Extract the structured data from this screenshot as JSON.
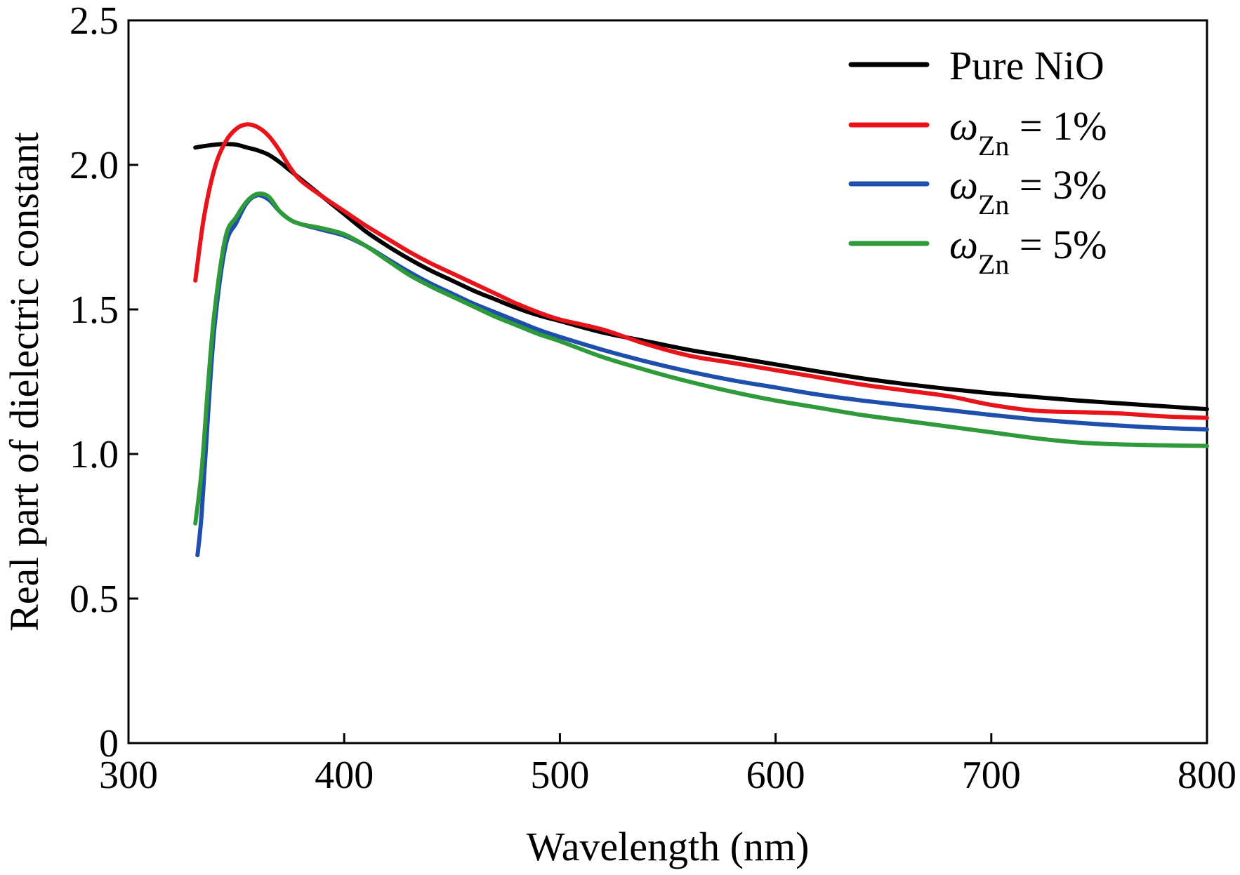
{
  "chart_data": {
    "type": "line",
    "title": "",
    "xlabel": "Wavelength (nm)",
    "ylabel": "Real part of dielectric constant",
    "xlim": [
      300,
      800
    ],
    "ylim": [
      0,
      2.5
    ],
    "xticks": [
      "300",
      "400",
      "500",
      "600",
      "700",
      "800"
    ],
    "yticks": [
      "0",
      "0.5",
      "1.0",
      "1.5",
      "2.0",
      "2.5"
    ],
    "grid": false,
    "legend_position": "top-right",
    "series": [
      {
        "name": "Pure NiO",
        "legend": {
          "symbol": "",
          "sub": "",
          "rest": "Pure NiO"
        },
        "color": "#000000",
        "x": [
          331,
          335,
          340,
          345,
          350,
          355,
          360,
          365,
          370,
          375,
          380,
          390,
          400,
          410,
          420,
          430,
          440,
          450,
          460,
          470,
          480,
          490,
          500,
          520,
          540,
          560,
          580,
          600,
          620,
          640,
          660,
          680,
          700,
          720,
          740,
          760,
          780,
          800
        ],
        "y": [
          2.06,
          2.065,
          2.07,
          2.072,
          2.07,
          2.06,
          2.05,
          2.035,
          2.01,
          1.98,
          1.95,
          1.89,
          1.83,
          1.77,
          1.72,
          1.675,
          1.635,
          1.6,
          1.565,
          1.535,
          1.505,
          1.48,
          1.46,
          1.42,
          1.39,
          1.36,
          1.335,
          1.31,
          1.285,
          1.262,
          1.242,
          1.225,
          1.21,
          1.197,
          1.185,
          1.175,
          1.165,
          1.155
        ]
      },
      {
        "name": "ωZn = 1%",
        "legend": {
          "symbol": "ω",
          "sub": "Zn",
          "rest": " = 1%"
        },
        "color": "#e8141b",
        "x": [
          331,
          335,
          340,
          345,
          350,
          355,
          360,
          365,
          370,
          375,
          380,
          390,
          400,
          410,
          420,
          430,
          440,
          450,
          460,
          470,
          480,
          490,
          500,
          520,
          540,
          560,
          580,
          600,
          620,
          640,
          660,
          680,
          700,
          720,
          740,
          760,
          780,
          800
        ],
        "y": [
          1.6,
          1.82,
          1.99,
          2.08,
          2.125,
          2.14,
          2.13,
          2.1,
          2.05,
          1.99,
          1.945,
          1.89,
          1.84,
          1.79,
          1.745,
          1.7,
          1.66,
          1.625,
          1.59,
          1.555,
          1.52,
          1.49,
          1.465,
          1.43,
          1.38,
          1.34,
          1.315,
          1.29,
          1.265,
          1.24,
          1.22,
          1.2,
          1.17,
          1.15,
          1.145,
          1.14,
          1.13,
          1.125
        ]
      },
      {
        "name": "ωZn = 3%",
        "legend": {
          "symbol": "ω",
          "sub": "Zn",
          "rest": " = 3%"
        },
        "color": "#1f4fad",
        "x": [
          332,
          334,
          337,
          340,
          345,
          350,
          355,
          360,
          365,
          370,
          375,
          380,
          390,
          400,
          410,
          420,
          430,
          440,
          450,
          460,
          470,
          480,
          490,
          500,
          520,
          540,
          560,
          580,
          600,
          620,
          640,
          660,
          680,
          700,
          720,
          740,
          760,
          780,
          800
        ],
        "y": [
          0.65,
          0.8,
          1.15,
          1.45,
          1.72,
          1.8,
          1.87,
          1.895,
          1.88,
          1.84,
          1.81,
          1.795,
          1.775,
          1.755,
          1.72,
          1.675,
          1.63,
          1.59,
          1.555,
          1.52,
          1.49,
          1.46,
          1.43,
          1.405,
          1.36,
          1.32,
          1.285,
          1.255,
          1.23,
          1.205,
          1.185,
          1.168,
          1.152,
          1.135,
          1.12,
          1.108,
          1.098,
          1.09,
          1.085
        ]
      },
      {
        "name": "ωZn = 5%",
        "legend": {
          "symbol": "ω",
          "sub": "Zn",
          "rest": " = 5%"
        },
        "color": "#2e9a3a",
        "x": [
          331,
          334,
          337,
          340,
          345,
          350,
          355,
          360,
          365,
          370,
          375,
          380,
          390,
          400,
          410,
          420,
          430,
          440,
          450,
          460,
          470,
          480,
          490,
          500,
          520,
          540,
          560,
          580,
          600,
          620,
          640,
          660,
          680,
          700,
          720,
          740,
          760,
          780,
          800
        ],
        "y": [
          0.76,
          0.95,
          1.25,
          1.5,
          1.75,
          1.82,
          1.875,
          1.9,
          1.89,
          1.84,
          1.81,
          1.795,
          1.78,
          1.76,
          1.72,
          1.67,
          1.62,
          1.58,
          1.545,
          1.51,
          1.475,
          1.445,
          1.415,
          1.39,
          1.335,
          1.29,
          1.25,
          1.215,
          1.185,
          1.16,
          1.135,
          1.115,
          1.095,
          1.075,
          1.055,
          1.04,
          1.033,
          1.03,
          1.028
        ]
      }
    ]
  }
}
